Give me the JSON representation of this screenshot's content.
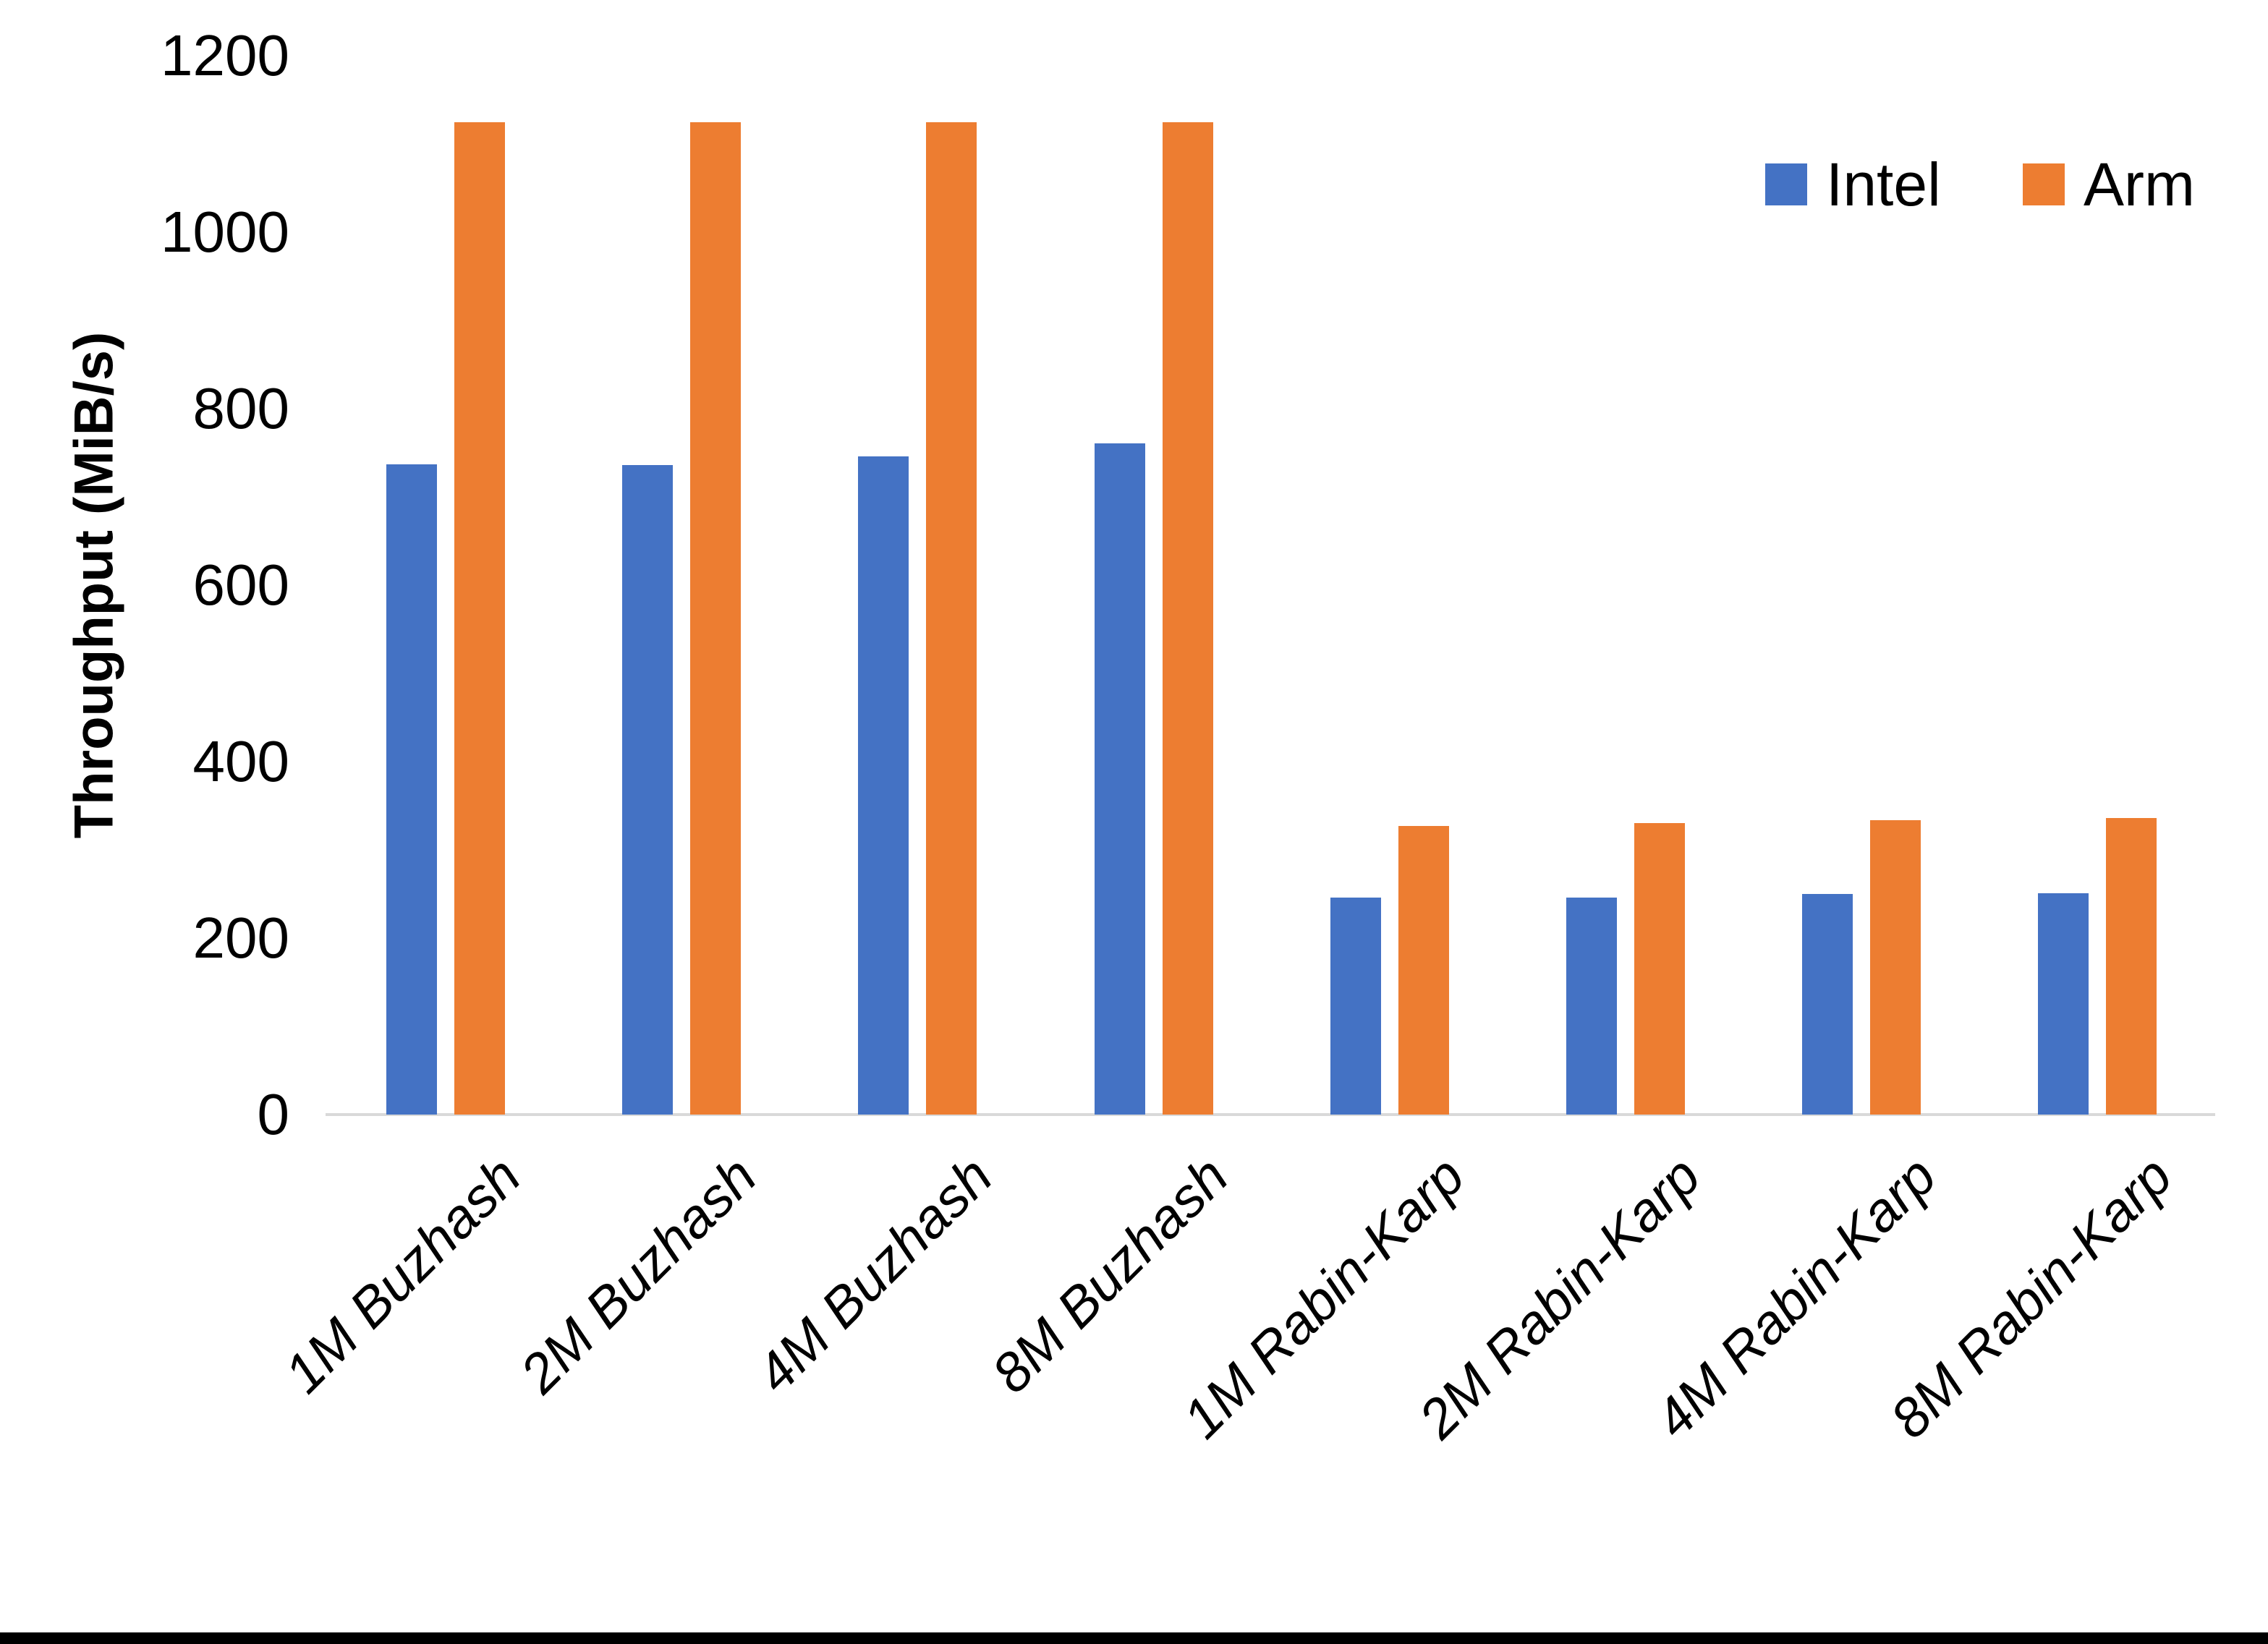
{
  "chart_data": {
    "type": "bar",
    "title": "",
    "xlabel": "",
    "ylabel": "Throughput (MiB/s)",
    "ylim": [
      0,
      1200
    ],
    "yticks": [
      0,
      200,
      400,
      600,
      800,
      1000,
      1200
    ],
    "grid": false,
    "legend_position": "top-right",
    "categories": [
      "1M Buzhash",
      "2M Buzhash",
      "4M Buzhash",
      "8M Buzhash",
      "1M Rabin-Karp",
      "2M Rabin-Karp",
      "4M Rabin-Karp",
      "8M Rabin-Karp"
    ],
    "series": [
      {
        "name": "Intel",
        "color": "#4472C4",
        "values": [
          737,
          736,
          746,
          761,
          246,
          246,
          250,
          251
        ]
      },
      {
        "name": "Arm",
        "color": "#ED7D31",
        "values": [
          1125,
          1125,
          1125,
          1125,
          327,
          330,
          334,
          336
        ]
      }
    ]
  }
}
